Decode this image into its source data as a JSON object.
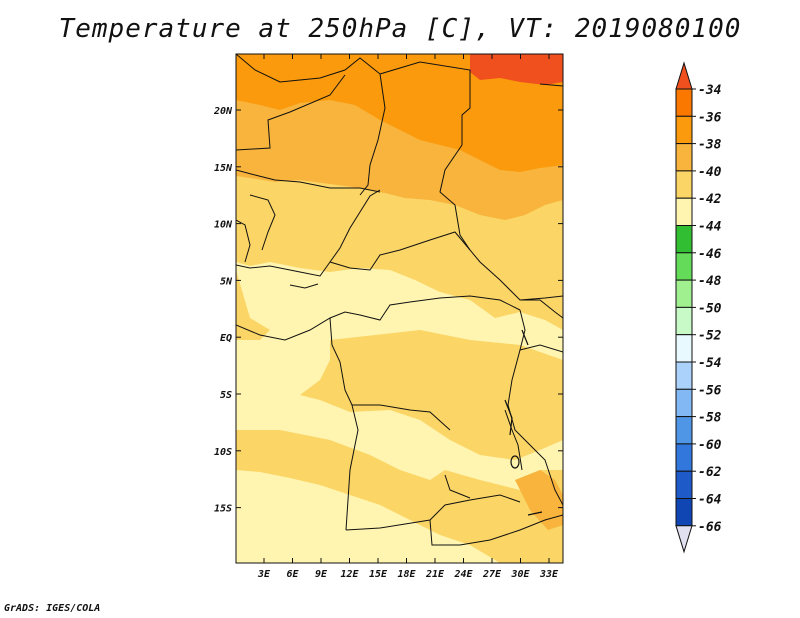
{
  "title": "Temperature at 250hPa [C], VT: 2019080100",
  "credit": "GrADS: IGES/COLA",
  "map": {
    "lon_labels": [
      "3E",
      "6E",
      "9E",
      "12E",
      "15E",
      "18E",
      "21E",
      "24E",
      "27E",
      "30E",
      "33E"
    ],
    "lat_labels": [
      "20N",
      "15N",
      "10N",
      "5N",
      "EQ",
      "5S",
      "10S",
      "15S"
    ]
  },
  "colorbar": {
    "labels": [
      "-34",
      "-36",
      "-38",
      "-40",
      "-42",
      "-44",
      "-46",
      "-48",
      "-50",
      "-52",
      "-54",
      "-56",
      "-58",
      "-60",
      "-62",
      "-64",
      "-66"
    ],
    "colors": [
      "#f0501e",
      "#fa7800",
      "#fa9a0c",
      "#f8b43c",
      "#fbd565",
      "#fff5b0",
      "#32be32",
      "#64dc5a",
      "#a0f090",
      "#c8fac8",
      "#e8faff",
      "#aad2fa",
      "#82b9f5",
      "#5096e6",
      "#3278dc",
      "#1e5ac8",
      "#1046b4",
      "#0a1e78",
      "#e0e0f0"
    ]
  }
}
